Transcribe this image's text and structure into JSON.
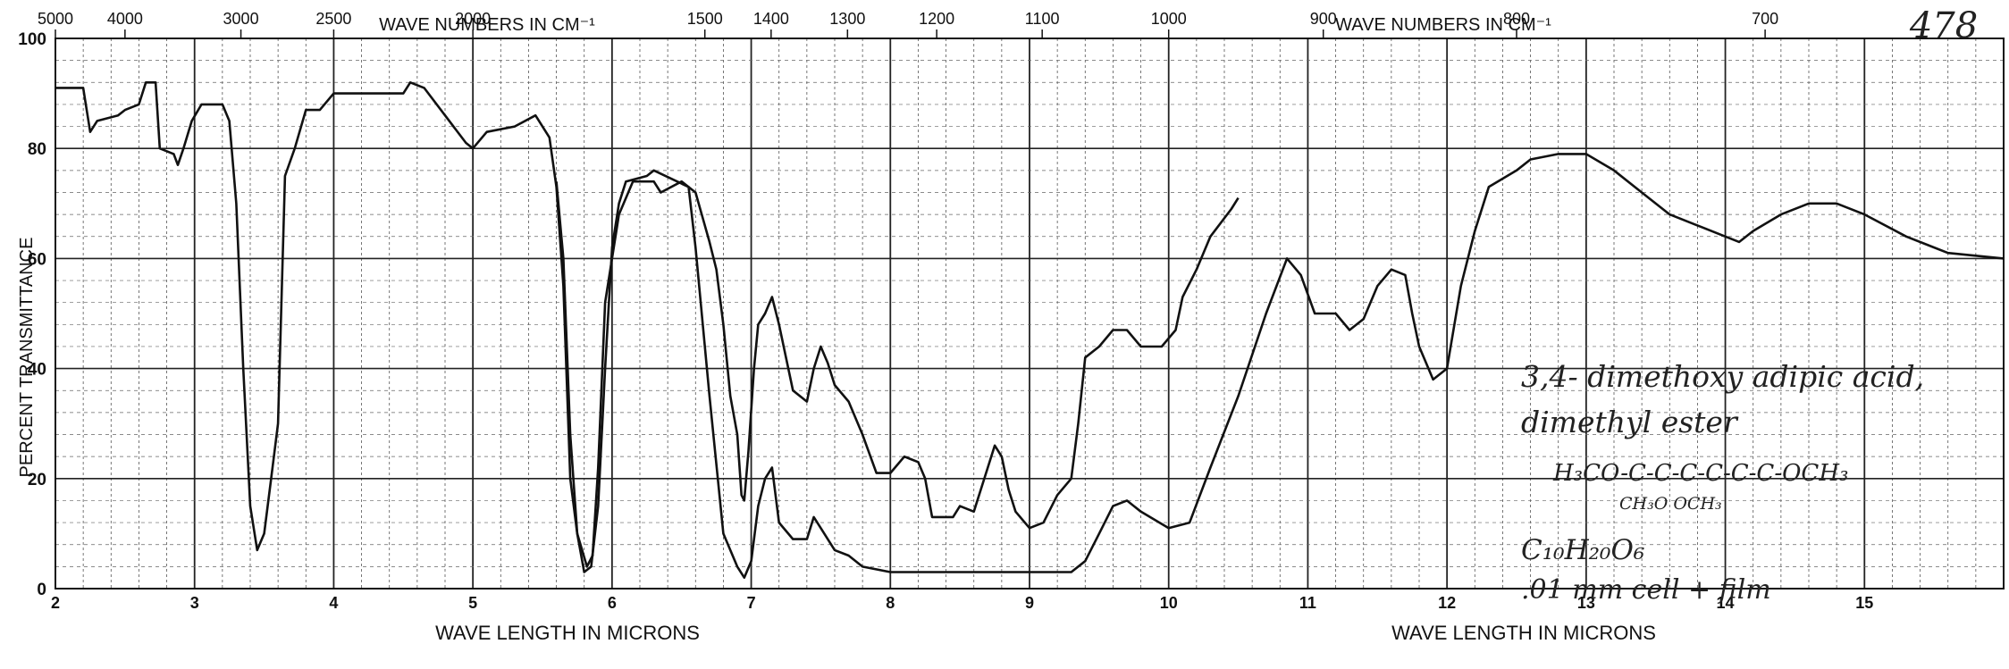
{
  "page_number": "478",
  "chart_data": {
    "type": "line",
    "top_axis_label_left": "WAVE NUMBERS IN CM⁻¹",
    "top_axis_label_right": "WAVE NUMBERS IN CM⁻¹",
    "bottom_axis_label_left": "WAVE LENGTH IN MICRONS",
    "bottom_axis_label_right": "WAVE LENGTH IN MICRONS",
    "ylabel": "PERCENT TRANSMITTANCE",
    "xlim": [
      2,
      16
    ],
    "ylim": [
      0,
      100
    ],
    "x_ticks": [
      "2",
      "3",
      "4",
      "5",
      "6",
      "7",
      "8",
      "9",
      "10",
      "11",
      "12",
      "13",
      "14",
      "15"
    ],
    "y_ticks": [
      "0",
      "20",
      "40",
      "60",
      "80",
      "100"
    ],
    "wavenumber_ticks": [
      {
        "label": "5000",
        "micron": 2.0
      },
      {
        "label": "4000",
        "micron": 2.5
      },
      {
        "label": "3000",
        "micron": 3.333
      },
      {
        "label": "2500",
        "micron": 4.0
      },
      {
        "label": "2000",
        "micron": 5.0
      },
      {
        "label": "1500",
        "micron": 6.667
      },
      {
        "label": "1400",
        "micron": 7.143
      },
      {
        "label": "1300",
        "micron": 7.692
      },
      {
        "label": "1200",
        "micron": 8.333
      },
      {
        "label": "1100",
        "micron": 9.091
      },
      {
        "label": "1000",
        "micron": 10.0
      },
      {
        "label": "900",
        "micron": 11.111
      },
      {
        "label": "800",
        "micron": 12.5
      },
      {
        "label": "700",
        "micron": 14.286
      }
    ],
    "grid": true,
    "series": [
      {
        "color": "#111111",
        "points": [
          [
            2.0,
            91
          ],
          [
            2.2,
            91
          ],
          [
            2.25,
            83
          ],
          [
            2.3,
            85
          ],
          [
            2.45,
            86
          ],
          [
            2.5,
            87
          ],
          [
            2.6,
            88
          ],
          [
            2.65,
            92
          ],
          [
            2.72,
            92
          ],
          [
            2.75,
            80
          ],
          [
            2.85,
            79
          ],
          [
            2.88,
            77
          ],
          [
            2.92,
            80
          ],
          [
            2.98,
            85
          ],
          [
            3.05,
            88
          ],
          [
            3.2,
            88
          ],
          [
            3.25,
            85
          ],
          [
            3.3,
            70
          ],
          [
            3.35,
            40
          ],
          [
            3.4,
            15
          ],
          [
            3.45,
            7
          ],
          [
            3.5,
            10
          ],
          [
            3.55,
            20
          ],
          [
            3.6,
            30
          ],
          [
            3.65,
            75
          ],
          [
            3.72,
            80
          ],
          [
            3.8,
            87
          ],
          [
            3.9,
            87
          ],
          [
            4.0,
            90
          ],
          [
            4.5,
            90
          ],
          [
            4.55,
            92
          ],
          [
            4.65,
            91
          ],
          [
            4.8,
            86
          ],
          [
            4.95,
            81
          ],
          [
            5.0,
            80
          ],
          [
            5.1,
            83
          ],
          [
            5.3,
            84
          ],
          [
            5.45,
            86
          ],
          [
            5.55,
            82
          ],
          [
            5.6,
            73
          ],
          [
            5.65,
            55
          ],
          [
            5.7,
            20
          ],
          [
            5.75,
            10
          ],
          [
            5.82,
            4
          ],
          [
            5.86,
            6
          ],
          [
            5.9,
            22
          ],
          [
            5.95,
            52
          ],
          [
            6.05,
            68
          ],
          [
            6.15,
            74
          ],
          [
            6.3,
            74
          ],
          [
            6.35,
            72
          ],
          [
            6.5,
            74
          ],
          [
            6.6,
            72
          ],
          [
            6.7,
            63
          ],
          [
            6.75,
            58
          ],
          [
            6.8,
            48
          ],
          [
            6.85,
            35
          ],
          [
            6.9,
            28
          ],
          [
            6.93,
            17
          ],
          [
            6.95,
            16
          ],
          [
            6.98,
            25
          ],
          [
            7.02,
            40
          ],
          [
            7.05,
            48
          ],
          [
            7.1,
            50
          ],
          [
            7.15,
            53
          ],
          [
            7.2,
            48
          ],
          [
            7.25,
            42
          ],
          [
            7.3,
            36
          ],
          [
            7.4,
            34
          ],
          [
            7.45,
            40
          ],
          [
            7.5,
            44
          ],
          [
            7.55,
            41
          ],
          [
            7.6,
            37
          ],
          [
            7.7,
            34
          ],
          [
            7.8,
            28
          ],
          [
            7.9,
            21
          ],
          [
            8.0,
            21
          ],
          [
            8.1,
            24
          ],
          [
            8.2,
            23
          ],
          [
            8.25,
            20
          ],
          [
            8.3,
            13
          ],
          [
            8.45,
            13
          ],
          [
            8.5,
            15
          ],
          [
            8.6,
            14
          ],
          [
            8.7,
            22
          ],
          [
            8.75,
            26
          ],
          [
            8.8,
            24
          ],
          [
            8.85,
            18
          ],
          [
            8.9,
            14
          ],
          [
            9.0,
            11
          ],
          [
            9.1,
            12
          ],
          [
            9.2,
            17
          ],
          [
            9.3,
            20
          ],
          [
            9.35,
            30
          ],
          [
            9.4,
            42
          ],
          [
            9.5,
            44
          ],
          [
            9.6,
            47
          ],
          [
            9.7,
            47
          ],
          [
            9.8,
            44
          ],
          [
            9.95,
            44
          ],
          [
            10.05,
            47
          ],
          [
            10.1,
            53
          ],
          [
            10.2,
            58
          ],
          [
            10.3,
            64
          ],
          [
            10.45,
            69
          ],
          [
            10.5,
            71
          ]
        ]
      },
      {
        "color": "#111111",
        "points": [
          [
            5.6,
            74
          ],
          [
            5.65,
            60
          ],
          [
            5.7,
            28
          ],
          [
            5.75,
            10
          ],
          [
            5.8,
            3
          ],
          [
            5.85,
            4
          ],
          [
            5.9,
            15
          ],
          [
            5.95,
            40
          ],
          [
            6.0,
            62
          ],
          [
            6.05,
            70
          ],
          [
            6.1,
            74
          ],
          [
            6.25,
            75
          ],
          [
            6.3,
            76
          ],
          [
            6.55,
            73
          ],
          [
            6.6,
            62
          ],
          [
            6.7,
            35
          ],
          [
            6.8,
            10
          ],
          [
            6.9,
            4
          ],
          [
            6.95,
            2
          ],
          [
            7.0,
            5
          ],
          [
            7.05,
            15
          ],
          [
            7.1,
            20
          ],
          [
            7.15,
            22
          ],
          [
            7.2,
            12
          ],
          [
            7.3,
            9
          ],
          [
            7.4,
            9
          ],
          [
            7.45,
            13
          ],
          [
            7.5,
            11
          ],
          [
            7.6,
            7
          ],
          [
            7.7,
            6
          ],
          [
            7.8,
            4
          ],
          [
            8.0,
            3
          ],
          [
            8.5,
            3
          ],
          [
            9.0,
            3
          ],
          [
            9.3,
            3
          ],
          [
            9.4,
            5
          ],
          [
            9.5,
            10
          ],
          [
            9.6,
            15
          ],
          [
            9.7,
            16
          ],
          [
            9.8,
            14
          ],
          [
            10.0,
            11
          ],
          [
            10.15,
            12
          ],
          [
            10.3,
            22
          ],
          [
            10.5,
            35
          ],
          [
            10.7,
            50
          ],
          [
            10.85,
            60
          ],
          [
            10.95,
            57
          ],
          [
            11.05,
            50
          ],
          [
            11.2,
            50
          ],
          [
            11.3,
            47
          ],
          [
            11.4,
            49
          ],
          [
            11.5,
            55
          ],
          [
            11.6,
            58
          ],
          [
            11.7,
            57
          ],
          [
            11.75,
            50
          ],
          [
            11.8,
            44
          ],
          [
            11.9,
            38
          ],
          [
            12.0,
            40
          ],
          [
            12.1,
            55
          ],
          [
            12.2,
            65
          ],
          [
            12.3,
            73
          ],
          [
            12.5,
            76
          ],
          [
            12.6,
            78
          ],
          [
            12.8,
            79
          ],
          [
            13.0,
            79
          ],
          [
            13.2,
            76
          ],
          [
            13.4,
            72
          ],
          [
            13.6,
            68
          ],
          [
            13.8,
            66
          ],
          [
            14.0,
            64
          ],
          [
            14.1,
            63
          ],
          [
            14.2,
            65
          ],
          [
            14.4,
            68
          ],
          [
            14.6,
            70
          ],
          [
            14.8,
            70
          ],
          [
            15.0,
            68
          ],
          [
            15.3,
            64
          ],
          [
            15.6,
            61
          ],
          [
            16.0,
            60
          ]
        ]
      }
    ],
    "annotations": [
      "3,4- dimethoxy adipic acid,",
      "dimethyl ester",
      "H₃CO-C-C-C-C-C-C-OCH₃",
      "CH₃O OCH₃",
      "C₁₀H₂₀O₆",
      ".01 mm cell + film"
    ]
  }
}
